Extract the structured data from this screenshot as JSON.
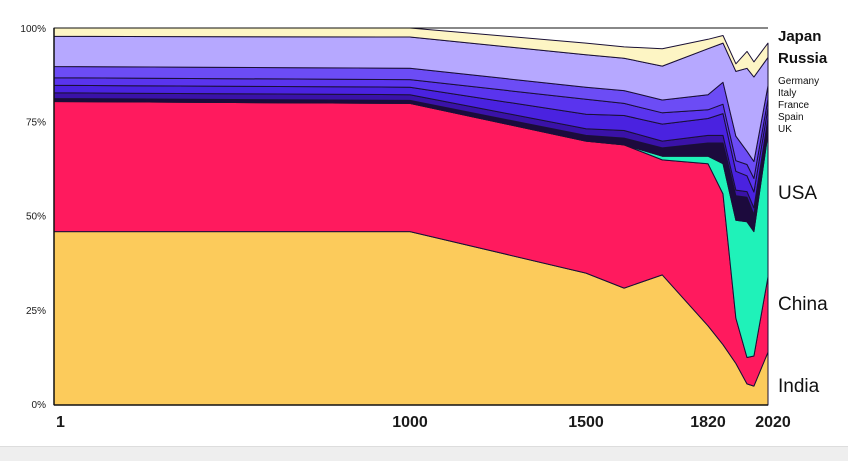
{
  "chart_data": {
    "type": "area",
    "stacked": true,
    "normalized": true,
    "title": "",
    "xlabel": "",
    "ylabel": "",
    "x": [
      1,
      1000,
      1500,
      1600,
      1700,
      1820,
      1870,
      1913,
      1950,
      1973,
      2020
    ],
    "x_ticks": [
      "1",
      "1000",
      "1500",
      "1820",
      "2020"
    ],
    "y_ticks": [
      "0%",
      "25%",
      "50%",
      "75%",
      "100%"
    ],
    "ylim": [
      0,
      100
    ],
    "series": [
      {
        "name": "India",
        "color": "#fccb5b",
        "values": [
          46,
          46,
          35,
          31,
          34.5,
          21,
          16,
          11,
          5.6,
          5,
          14
        ]
      },
      {
        "name": "China",
        "color": "#ff1a5e",
        "values": [
          34.5,
          34,
          35,
          38,
          30.5,
          43,
          40,
          12,
          7,
          8,
          20
        ]
      },
      {
        "name": "USA",
        "color": "#1ff2b9",
        "values": [
          0,
          0,
          0,
          0,
          1,
          2,
          8,
          26,
          36,
          33,
          38
        ]
      },
      {
        "name": "UK",
        "color": "#1c0a3d",
        "values": [
          0.8,
          0.8,
          1.5,
          1.8,
          2.2,
          3.5,
          5.5,
          6.5,
          6.5,
          4.5,
          2.5
        ]
      },
      {
        "name": "Spain",
        "color": "#3a12a8",
        "values": [
          1.5,
          1.5,
          1.8,
          2,
          1.8,
          2,
          2,
          1.5,
          1.5,
          1.8,
          1.5
        ]
      },
      {
        "name": "France",
        "color": "#4a22e0",
        "values": [
          2,
          2,
          3.8,
          4,
          4.5,
          4.5,
          5.8,
          5,
          4.2,
          4.2,
          2.8
        ]
      },
      {
        "name": "Italy",
        "color": "#5a34ee",
        "values": [
          2,
          2,
          4,
          3.2,
          3,
          2.3,
          2.5,
          2.8,
          3,
          3.6,
          2.4
        ]
      },
      {
        "name": "Germany",
        "color": "#6c4cf5",
        "values": [
          3,
          3,
          3.2,
          3.4,
          3.4,
          4,
          5.8,
          6.5,
          3.5,
          4.5,
          3.5
        ]
      },
      {
        "name": "Russia",
        "color": "#b6a8ff",
        "values": [
          8,
          8.3,
          8.6,
          8.6,
          9,
          12.2,
          10.4,
          17.2,
          22,
          22.4,
          7.5
        ]
      },
      {
        "name": "Japan",
        "color": "#fdf5c4",
        "values": [
          2.2,
          2.4,
          3.1,
          3,
          4.6,
          2.5,
          2,
          2,
          4.5,
          4,
          3.8
        ]
      }
    ]
  }
}
